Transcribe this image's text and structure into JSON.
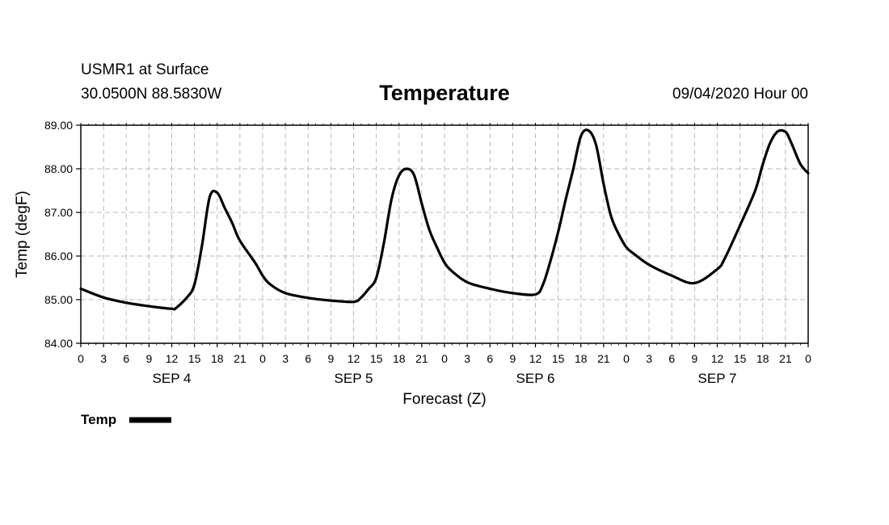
{
  "header": {
    "station": "USMR1 at Surface",
    "coords": "30.0500N 88.5830W",
    "datetime": "09/04/2020 Hour 00"
  },
  "chart_data": {
    "type": "line",
    "title": "Temperature",
    "xlabel": "Forecast (Z)",
    "ylabel": "Temp (degF)",
    "ylim": [
      84,
      89
    ],
    "xlim_hours": [
      0,
      96
    ],
    "grid": true,
    "y_ticks": [
      "84.00",
      "85.00",
      "86.00",
      "87.00",
      "88.00",
      "89.00"
    ],
    "x_tick_labels": [
      "0",
      "3",
      "6",
      "9",
      "12",
      "15",
      "18",
      "21",
      "0",
      "3",
      "6",
      "9",
      "12",
      "15",
      "18",
      "21",
      "0",
      "3",
      "6",
      "9",
      "12",
      "15",
      "18",
      "21",
      "0",
      "3",
      "6",
      "9",
      "12",
      "15",
      "18",
      "21",
      "0"
    ],
    "day_labels": [
      "SEP 4",
      "SEP 5",
      "SEP 6",
      "SEP 7"
    ],
    "legend": "bottom-left",
    "series": [
      {
        "name": "Temp",
        "x": [
          0,
          3,
          6,
          9,
          12,
          12.5,
          14,
          15,
          16,
          17,
          18,
          19,
          20,
          21,
          23,
          24,
          25,
          27,
          30,
          33,
          36,
          37,
          38,
          39,
          40,
          41,
          42,
          43,
          44,
          45,
          46,
          47,
          48,
          49,
          51,
          54,
          57,
          60,
          61,
          62,
          63,
          64,
          65,
          66,
          67,
          68,
          69,
          70,
          71,
          72,
          73,
          75,
          78,
          81,
          84,
          85,
          87,
          89,
          90,
          91,
          92,
          93,
          93.5,
          94,
          95,
          96
        ],
        "values": [
          85.25,
          85.05,
          84.93,
          84.85,
          84.79,
          84.8,
          85.05,
          85.35,
          86.25,
          87.35,
          87.45,
          87.1,
          86.75,
          86.35,
          85.85,
          85.55,
          85.35,
          85.15,
          85.04,
          84.98,
          84.95,
          85.05,
          85.25,
          85.5,
          86.3,
          87.3,
          87.85,
          88.0,
          87.85,
          87.2,
          86.6,
          86.2,
          85.85,
          85.65,
          85.4,
          85.25,
          85.15,
          85.12,
          85.35,
          85.9,
          86.55,
          87.3,
          88.0,
          88.75,
          88.88,
          88.55,
          87.65,
          86.9,
          86.5,
          86.2,
          86.05,
          85.8,
          85.55,
          85.38,
          85.7,
          85.95,
          86.7,
          87.5,
          88.1,
          88.6,
          88.86,
          88.85,
          88.7,
          88.5,
          88.1,
          87.9
        ]
      }
    ]
  }
}
